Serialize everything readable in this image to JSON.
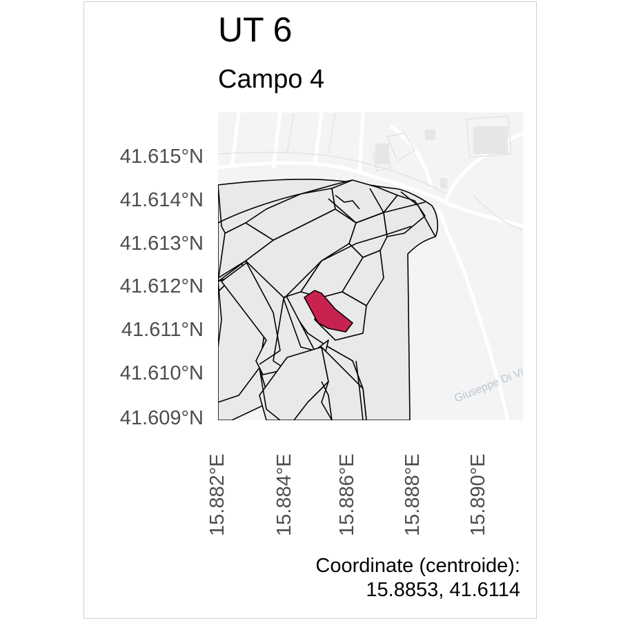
{
  "title": "UT 6",
  "subtitle": "Campo 4",
  "y_axis": {
    "tick_labels": [
      "41.615°N",
      "41.614°N",
      "41.613°N",
      "41.612°N",
      "41.611°N",
      "41.610°N",
      "41.609°N"
    ]
  },
  "x_axis": {
    "tick_labels": [
      "15.882°E",
      "15.884°E",
      "15.886°E",
      "15.888°E",
      "15.890°E"
    ]
  },
  "caption": {
    "line1": "Coordinate (centroide):",
    "line2": "15.8853, 41.6114"
  },
  "basemap": {
    "street_label": "Giuseppe Di Vitt"
  },
  "highlight": {
    "centroid_lon": 15.8853,
    "centroid_lat": 41.6114,
    "color": "#c8234e"
  },
  "colors": {
    "parcel_fill": "#e9e9e9",
    "parcel_stroke": "#000000",
    "basemap_bg": "#f4f4f4",
    "road": "#ffffff"
  }
}
